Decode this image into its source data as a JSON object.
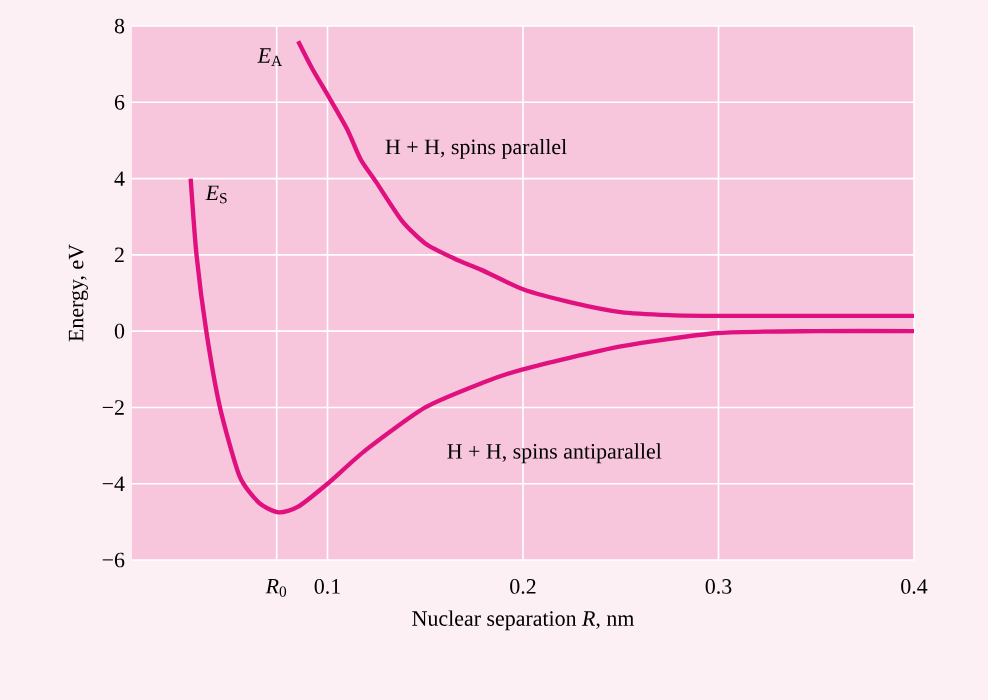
{
  "chart_data": {
    "type": "line",
    "xlabel": "Nuclear separation *R*, nm",
    "ylabel": "Energy, eV",
    "xlim": [
      0,
      0.4
    ],
    "ylim": [
      -6,
      8
    ],
    "xticks": [
      {
        "value": 0.074,
        "label": "*R*$_{0}$"
      },
      0.1,
      0.2,
      0.3,
      0.4
    ],
    "yticks": [
      {
        "value": -6,
        "label": "−6"
      },
      {
        "value": -4,
        "label": "−4"
      },
      {
        "value": -2,
        "label": "−2"
      },
      0,
      2,
      4,
      6,
      8
    ],
    "grid": true,
    "legend": false,
    "marker": "none",
    "line_style": "solid",
    "series": [
      {
        "name": "*E*$_{A}$",
        "color": "#e0117f",
        "x": [
          0.085,
          0.092,
          0.1,
          0.11,
          0.117,
          0.125,
          0.138,
          0.15,
          0.165,
          0.179,
          0.2,
          0.225,
          0.25,
          0.275,
          0.3,
          0.35,
          0.4
        ],
        "values": [
          7.6,
          6.9,
          6.2,
          5.3,
          4.5,
          3.9,
          2.9,
          2.3,
          1.9,
          1.6,
          1.1,
          0.75,
          0.5,
          0.42,
          0.4,
          0.4,
          0.4
        ]
      },
      {
        "name": "*E*$_{S}$",
        "color": "#e0117f",
        "x": [
          0.03,
          0.033,
          0.038,
          0.045,
          0.055,
          0.065,
          0.075,
          0.085,
          0.1,
          0.12,
          0.15,
          0.179,
          0.2,
          0.25,
          0.3,
          0.35,
          0.4
        ],
        "values": [
          4,
          2,
          0,
          -2,
          -3.8,
          -4.5,
          -4.75,
          -4.6,
          -4.0,
          -3.1,
          -2.0,
          -1.36,
          -1.0,
          -0.4,
          -0.05,
          0,
          0
        ]
      }
    ],
    "annotations": [
      "H + H, spins parallel",
      "H + H, spins antiparallel"
    ]
  }
}
